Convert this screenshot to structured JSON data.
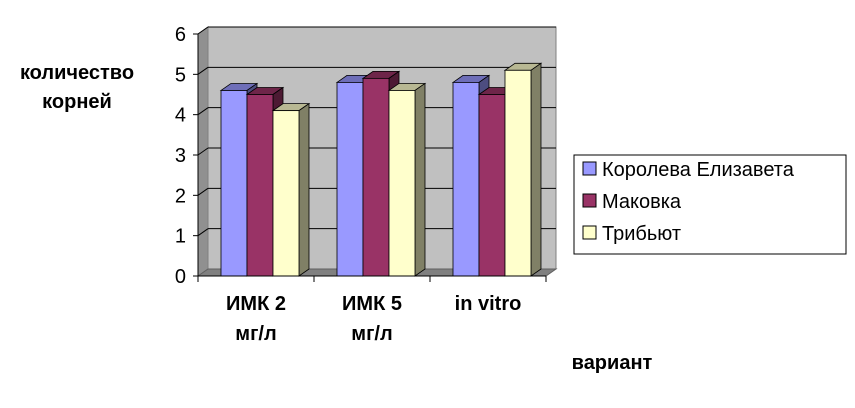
{
  "chart_data": {
    "type": "bar",
    "title": "",
    "ylabel": [
      "количество",
      "корней"
    ],
    "xlabel": "вариант",
    "categories": [
      [
        "ИМК 2",
        "мг/л"
      ],
      [
        "ИМК 5",
        "мг/л"
      ],
      [
        "in vitro"
      ]
    ],
    "ylim": [
      0,
      6
    ],
    "yticks": [
      0,
      1,
      2,
      3,
      4,
      5,
      6
    ],
    "grid": true,
    "legend_position": "right",
    "series": [
      {
        "name": "Королева Елизавета",
        "values": [
          4.6,
          4.8,
          4.8
        ],
        "color": "#9999ff"
      },
      {
        "name": "Маковка",
        "values": [
          4.5,
          4.9,
          4.5
        ],
        "color": "#993366"
      },
      {
        "name": "Трибьют",
        "values": [
          4.1,
          4.6,
          5.1
        ],
        "color": "#ffffcc"
      }
    ]
  }
}
